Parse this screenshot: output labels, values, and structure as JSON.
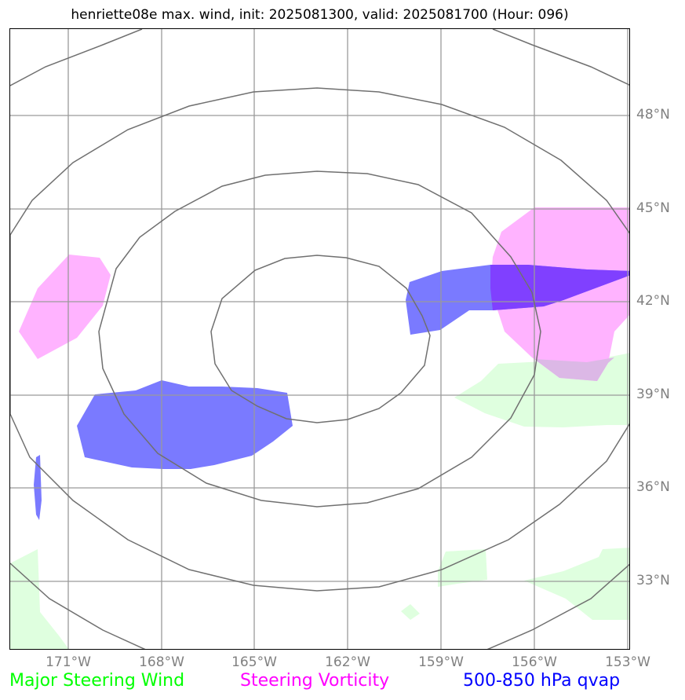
{
  "title": "henriette08e max. wind, init: 2025081300, valid: 2025081700 (Hour: 096)",
  "map": {
    "lat_labels": [
      "48°N",
      "45°N",
      "42°N",
      "39°N",
      "36°N",
      "33°N"
    ],
    "lon_labels": [
      "171°W",
      "168°W",
      "165°W",
      "162°W",
      "159°W",
      "156°W",
      "153°W"
    ],
    "layers": [
      {
        "name": "Major Steering Wind",
        "color": "#00ff00",
        "fill": "#dfffdf"
      },
      {
        "name": "Steering Vorticity",
        "color": "#ff00ff",
        "fill": "#ffb3ff"
      },
      {
        "name": "500-850 hPa qvap",
        "color": "#0000ff",
        "fill": "#7a7aff"
      }
    ]
  },
  "legend": {
    "wind": "Major Steering Wind",
    "vorticity": "Steering Vorticity",
    "qvap": "500-850 hPa qvap"
  }
}
